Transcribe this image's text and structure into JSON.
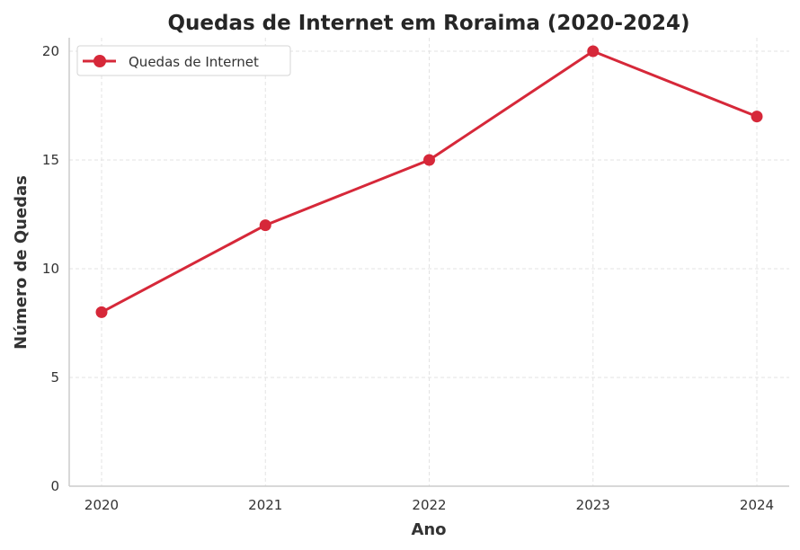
{
  "chart_data": {
    "type": "line",
    "title": "Quedas de Internet em Roraima (2020-2024)",
    "xlabel": "Ano",
    "ylabel": "Número de Quedas",
    "categories": [
      "2020",
      "2021",
      "2022",
      "2023",
      "2024"
    ],
    "series": [
      {
        "name": "Quedas de Internet",
        "values": [
          8,
          12,
          15,
          20,
          17
        ],
        "color": "#d62839"
      }
    ],
    "yticks": [
      "0",
      "5",
      "10",
      "15",
      "20"
    ],
    "ylim": [
      0,
      20.6
    ],
    "grid": true,
    "legend_position": "upper left"
  }
}
